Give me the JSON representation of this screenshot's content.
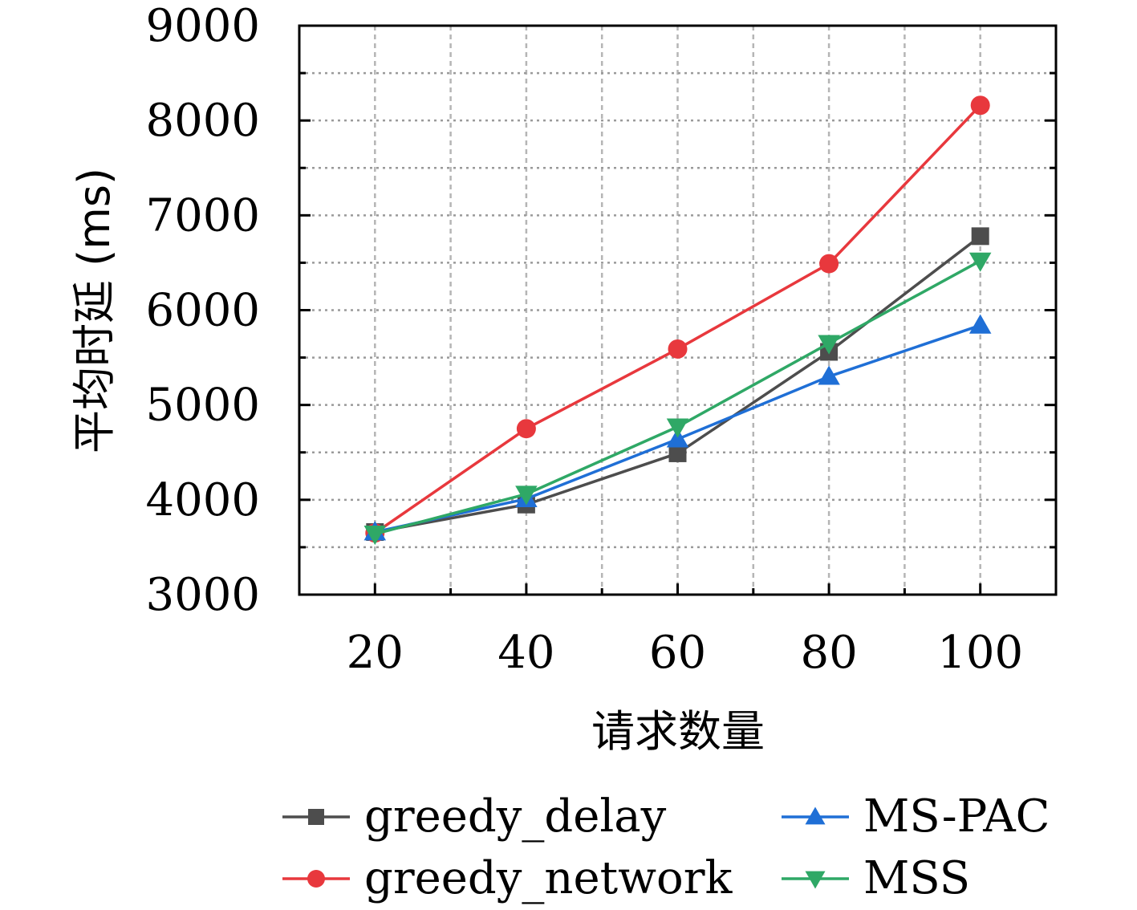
{
  "chart_data": {
    "type": "line",
    "title": "",
    "xlabel": "请求数量",
    "ylabel": "平均时延 (ms)",
    "x": [
      20,
      40,
      60,
      80,
      100
    ],
    "xlim": [
      10,
      110
    ],
    "ylim": [
      3000,
      9000
    ],
    "x_ticks": [
      "20",
      "40",
      "60",
      "80",
      "100"
    ],
    "y_ticks": [
      "3000",
      "4000",
      "5000",
      "6000",
      "7000",
      "8000",
      "9000"
    ],
    "grid": true,
    "legend_position": "bottom",
    "series": [
      {
        "name": "greedy_delay",
        "color": "#4d4d4d",
        "marker": "square",
        "values": [
          3660,
          3950,
          4490,
          5560,
          6780
        ]
      },
      {
        "name": "greedy_network",
        "color": "#e8383d",
        "marker": "circle",
        "values": [
          3650,
          4750,
          5590,
          6490,
          8160
        ]
      },
      {
        "name": "MS-PAC",
        "color": "#1f6fd6",
        "marker": "triangle-up",
        "values": [
          3660,
          4010,
          4640,
          5300,
          5840
        ]
      },
      {
        "name": "MSS",
        "color": "#2fa866",
        "marker": "triangle-down",
        "values": [
          3640,
          4060,
          4770,
          5650,
          6520
        ]
      }
    ]
  }
}
